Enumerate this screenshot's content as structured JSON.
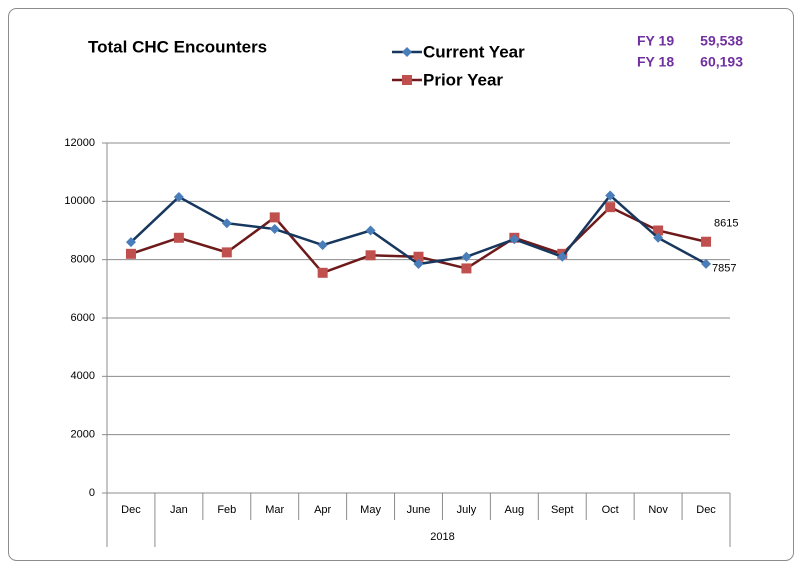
{
  "chart_data": {
    "type": "line",
    "title": "Total CHC Encounters",
    "categories": [
      "Dec",
      "Jan",
      "Feb",
      "Mar",
      "Apr",
      "May",
      "June",
      "July",
      "Aug",
      "Sept",
      "Oct",
      "Nov",
      "Dec"
    ],
    "group_label": "2018",
    "series": [
      {
        "name": "Current Year",
        "color": "#17375e",
        "marker_color": "#4a7ebb",
        "marker": "diamond",
        "values": [
          8600,
          10150,
          9250,
          9050,
          8500,
          9000,
          7850,
          8100,
          8700,
          8100,
          10200,
          8750,
          7857
        ]
      },
      {
        "name": "Prior Year",
        "color": "#6e1a1a",
        "marker_color": "#c0504d",
        "marker": "square",
        "values": [
          8200,
          8750,
          8250,
          9450,
          7550,
          8150,
          8100,
          7700,
          8750,
          8200,
          9800,
          9000,
          8615
        ]
      }
    ],
    "ylim": [
      0,
      12000
    ],
    "yticks": [
      0,
      2000,
      4000,
      6000,
      8000,
      10000,
      12000
    ],
    "grid": true,
    "totals": [
      {
        "label": "FY 19",
        "value": "59,538"
      },
      {
        "label": "FY 18",
        "value": "60,193"
      }
    ],
    "totals_color": "#7030a0"
  }
}
